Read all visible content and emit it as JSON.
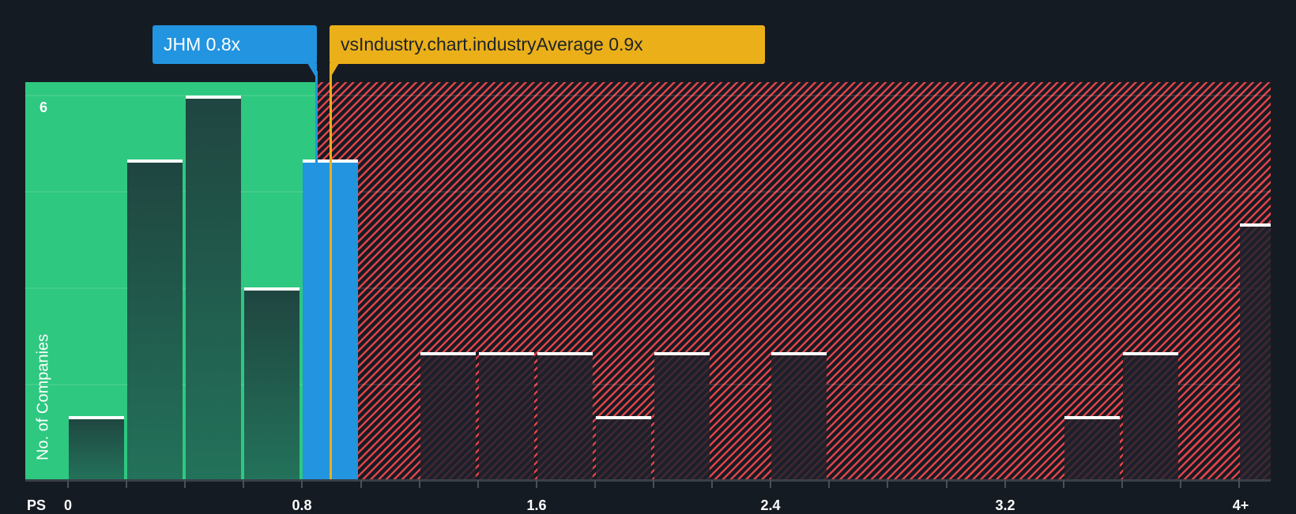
{
  "chart_data": {
    "type": "bar",
    "title": "",
    "xlabel": "PS",
    "ylabel": "No. of Companies",
    "categories": [
      "0-0.2",
      "0.2-0.4",
      "0.4-0.6",
      "0.6-0.8",
      "0.8-1.0",
      "1.0-1.2",
      "1.2-1.4",
      "1.4-1.6",
      "1.6-1.8",
      "1.8-2.0",
      "2.0-2.2",
      "2.2-2.4",
      "2.4-2.6",
      "2.6-2.8",
      "2.8-3.0",
      "3.0-3.2",
      "3.2-3.4",
      "3.4-3.6",
      "3.6-3.8",
      "3.8-4.0",
      "4+"
    ],
    "values": [
      1,
      5,
      6,
      3,
      5,
      0,
      2,
      2,
      2,
      1,
      2,
      0,
      2,
      0,
      0,
      0,
      0,
      1,
      2,
      0,
      4
    ],
    "highlight_bin": "0.8-1.0",
    "x_tick_labels": [
      "0",
      "0.8",
      "1.6",
      "2.4",
      "3.2",
      "4+"
    ],
    "y_tick_labels": [
      "6"
    ],
    "ylim": [
      0,
      6
    ],
    "grid": true,
    "company_value": 0.8,
    "industry_average": 0.9,
    "zones": {
      "below_average_color": "#2ec880",
      "above_average_color": "#e0434a"
    }
  },
  "labels": {
    "company": "JHM 0.8x",
    "industry": "vsIndustry.chart.industryAverage 0.9x",
    "x_axis_title": "PS",
    "y_axis_title": "No. of Companies",
    "y_tick_top": "6",
    "x_ticks": [
      "0",
      "0.8",
      "1.6",
      "2.4",
      "3.2",
      "4+"
    ]
  },
  "colors": {
    "background": "#151b23",
    "company": "#2394e0",
    "industry": "#ebb019",
    "green_zone": "#2ec880",
    "red_hatch": "#e0434a"
  }
}
